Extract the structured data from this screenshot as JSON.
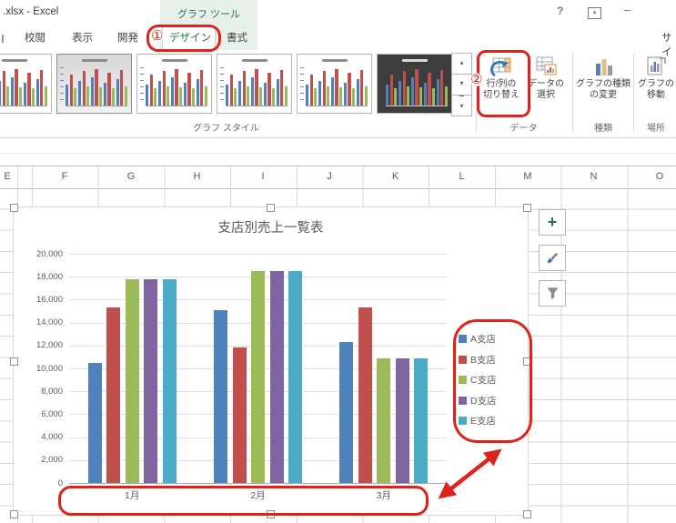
{
  "title_bar": {
    "filename": ".xlsx - Excel",
    "context_tool_label": "グラフ ツール",
    "help": "?",
    "minimize": "–",
    "sign_in_partial": "サイ"
  },
  "tabs": {
    "items": [
      "校閲",
      "表示",
      "開発",
      "デザイン",
      "書式"
    ],
    "active": "デザイン"
  },
  "ribbon": {
    "gallery_group_label": "グラフ スタイル",
    "switch_button": {
      "line1": "行/列の",
      "line2": "切り替え"
    },
    "select_data_button": {
      "line1": "データの",
      "line2": "選択"
    },
    "change_type_button": {
      "line1": "グラフの種類",
      "line2": "の変更"
    },
    "move_chart_button": {
      "line1": "グラフの",
      "line2": "移動"
    },
    "group_data": "データ",
    "group_type": "種類",
    "group_location": "場所"
  },
  "icons": {
    "scroll_up": "▴",
    "scroll_down": "▾",
    "gallery_more": "▾",
    "ribbon_options_arrow": "▴",
    "chart_elements_plus": "+"
  },
  "annotations": {
    "step1": "①",
    "step2": "②",
    "color": "#dc241c"
  },
  "grid": {
    "columns": [
      "E",
      "F",
      "G",
      "H",
      "I",
      "J",
      "K",
      "L",
      "M",
      "N",
      "O"
    ]
  },
  "chart": {
    "y_tick_labels": [
      "20,000",
      "18,000",
      "16,000",
      "14,000",
      "12,000",
      "10,000",
      "8,000",
      "6,000",
      "4,000",
      "2,000",
      "0"
    ]
  },
  "chart_data": {
    "type": "bar",
    "title": "支店別売上一覧表",
    "categories": [
      "1月",
      "2月",
      "3月"
    ],
    "series": [
      {
        "name": "A支店",
        "color": "#4F81BD",
        "values": [
          10500,
          15100,
          12300
        ]
      },
      {
        "name": "B支店",
        "color": "#C0504D",
        "values": [
          15300,
          11800,
          15300
        ]
      },
      {
        "name": "C支店",
        "color": "#9BBB59",
        "values": [
          17800,
          18500,
          10900
        ]
      },
      {
        "name": "D支店",
        "color": "#8064A2",
        "values": [
          17800,
          18500,
          10900
        ]
      },
      {
        "name": "E支店",
        "color": "#4BACC6",
        "values": [
          17800,
          18500,
          10900
        ]
      }
    ],
    "ylim": [
      0,
      20000
    ],
    "ytick_step": 2000,
    "grid": true,
    "legend_position": "right"
  }
}
